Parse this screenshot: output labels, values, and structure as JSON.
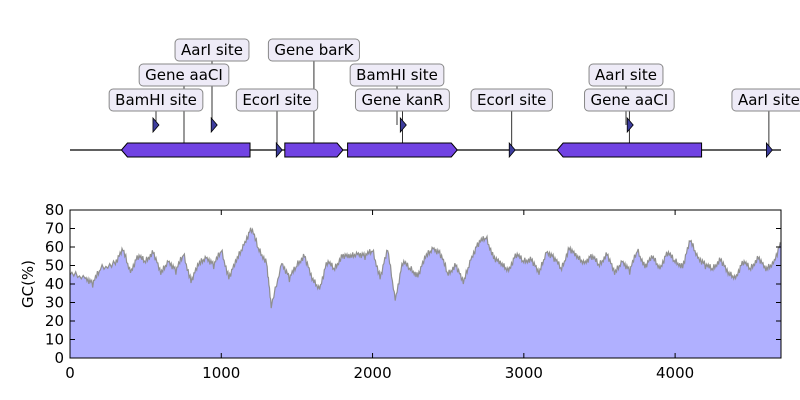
{
  "chart_data": [
    {
      "type": "sequence-map",
      "title": "",
      "x_range": [
        0,
        4700
      ],
      "features": [
        {
          "label": "BamHI site",
          "kind": "site",
          "position": 565
        },
        {
          "label": "Gene aaCI",
          "kind": "gene",
          "start": 340,
          "end": 1190,
          "strand": -1
        },
        {
          "label": "AarI site",
          "kind": "site",
          "position": 950
        },
        {
          "label": "EcorI site",
          "kind": "site",
          "position": 1380
        },
        {
          "label": "Gene barK",
          "kind": "gene",
          "start": 1420,
          "end": 1805,
          "strand": 1
        },
        {
          "label": "BamHI site",
          "kind": "site",
          "position": 2200
        },
        {
          "label": "Gene kanR",
          "kind": "gene",
          "start": 1835,
          "end": 2560,
          "strand": 1
        },
        {
          "label": "EcorI site",
          "kind": "site",
          "position": 2920
        },
        {
          "label": "AarI site",
          "kind": "site",
          "position": 3700
        },
        {
          "label": "Gene aaCI",
          "kind": "gene",
          "start": 3220,
          "end": 4175,
          "strand": -1
        },
        {
          "label": "AarI site",
          "kind": "site",
          "position": 4620
        }
      ],
      "colors": {
        "gene_fill": "#7143e3",
        "site_fill": "#3d3d9e",
        "label_box_fill": "#eeebf7",
        "label_box_border": "#888888"
      }
    },
    {
      "type": "area",
      "title": "",
      "xlabel": "",
      "ylabel": "GC(%)",
      "xlim": [
        0,
        4700
      ],
      "ylim": [
        0,
        80
      ],
      "x_ticks": [
        0,
        1000,
        2000,
        3000,
        4000
      ],
      "y_ticks": [
        0,
        10,
        20,
        30,
        40,
        50,
        60,
        70,
        80
      ],
      "grid": false,
      "series": [
        {
          "x": [
            0,
            100,
            150,
            200,
            300,
            350,
            400,
            450,
            500,
            550,
            600,
            650,
            700,
            750,
            800,
            850,
            900,
            950,
            1000,
            1050,
            1100,
            1150,
            1200,
            1250,
            1300,
            1330,
            1400,
            1450,
            1500,
            1550,
            1600,
            1650,
            1700,
            1750,
            1800,
            1850,
            1900,
            1950,
            2000,
            2050,
            2100,
            2150,
            2200,
            2250,
            2300,
            2350,
            2400,
            2450,
            2500,
            2550,
            2600,
            2650,
            2700,
            2750,
            2800,
            2850,
            2900,
            2950,
            3000,
            3050,
            3100,
            3150,
            3200,
            3250,
            3300,
            3350,
            3400,
            3450,
            3500,
            3550,
            3600,
            3650,
            3700,
            3750,
            3800,
            3850,
            3900,
            3950,
            4000,
            4050,
            4100,
            4150,
            4200,
            4250,
            4300,
            4350,
            4400,
            4450,
            4500,
            4550,
            4600,
            4650,
            4700
          ],
          "values": [
            45,
            44,
            40,
            48,
            52,
            58,
            47,
            55,
            52,
            58,
            45,
            53,
            47,
            56,
            42,
            50,
            55,
            50,
            58,
            44,
            52,
            62,
            70,
            58,
            52,
            27,
            52,
            43,
            50,
            56,
            42,
            38,
            52,
            48,
            56,
            54,
            57,
            55,
            58,
            44,
            58,
            32,
            52,
            48,
            45,
            54,
            60,
            56,
            45,
            51,
            40,
            54,
            62,
            65,
            55,
            50,
            48,
            56,
            52,
            54,
            45,
            58,
            54,
            48,
            60,
            54,
            52,
            55,
            50,
            57,
            45,
            53,
            47,
            58,
            50,
            54,
            49,
            57,
            52,
            50,
            63,
            55,
            50,
            48,
            54,
            45,
            44,
            52,
            48,
            55,
            47,
            52,
            62
          ],
          "fill": "#b0b0ff",
          "line": "#8f8f8f"
        }
      ]
    }
  ]
}
